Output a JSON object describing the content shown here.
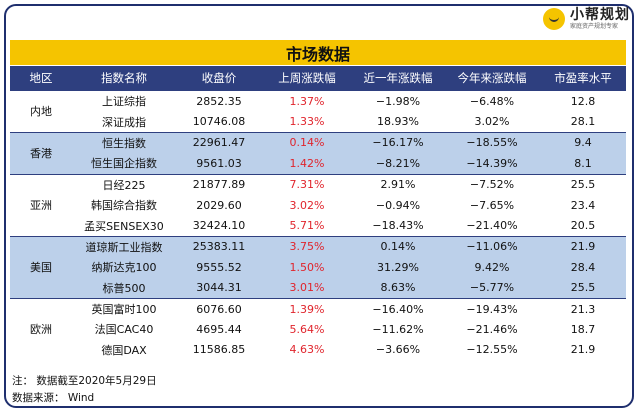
{
  "brand": {
    "name": "小帮规划",
    "slogan": "家庭资产规划专家"
  },
  "title": "市场数据",
  "headers": [
    "地区",
    "指数名称",
    "收盘价",
    "上周涨跌幅",
    "近一年涨跌幅",
    "今年来涨跌幅",
    "市盈率水平"
  ],
  "groups": [
    {
      "region": "内地",
      "rows": [
        {
          "name": "上证综指",
          "close": "2852.35",
          "week": "1.37%",
          "year": "−1.98%",
          "ytd": "−6.48%",
          "pe": "12.8"
        },
        {
          "name": "深证成指",
          "close": "10746.08",
          "week": "1.33%",
          "year": "18.93%",
          "ytd": "3.02%",
          "pe": "28.1"
        }
      ]
    },
    {
      "region": "香港",
      "rows": [
        {
          "name": "恒生指数",
          "close": "22961.47",
          "week": "0.14%",
          "year": "−16.17%",
          "ytd": "−18.55%",
          "pe": "9.4"
        },
        {
          "name": "恒生国企指数",
          "close": "9561.03",
          "week": "1.42%",
          "year": "−8.21%",
          "ytd": "−14.39%",
          "pe": "8.1"
        }
      ]
    },
    {
      "region": "亚洲",
      "rows": [
        {
          "name": "日经225",
          "close": "21877.89",
          "week": "7.31%",
          "year": "2.91%",
          "ytd": "−7.52%",
          "pe": "25.5"
        },
        {
          "name": "韩国综合指数",
          "close": "2029.60",
          "week": "3.02%",
          "year": "−0.94%",
          "ytd": "−7.65%",
          "pe": "23.4"
        },
        {
          "name": "孟买SENSEX30",
          "close": "32424.10",
          "week": "5.71%",
          "year": "−18.43%",
          "ytd": "−21.40%",
          "pe": "20.5"
        }
      ]
    },
    {
      "region": "美国",
      "rows": [
        {
          "name": "道琼斯工业指数",
          "close": "25383.11",
          "week": "3.75%",
          "year": "0.14%",
          "ytd": "−11.06%",
          "pe": "21.9"
        },
        {
          "name": "纳斯达克100",
          "close": "9555.52",
          "week": "1.50%",
          "year": "31.29%",
          "ytd": "9.42%",
          "pe": "28.4"
        },
        {
          "name": "标普500",
          "close": "3044.31",
          "week": "3.01%",
          "year": "8.63%",
          "ytd": "−5.77%",
          "pe": "25.5"
        }
      ]
    },
    {
      "region": "欧洲",
      "rows": [
        {
          "name": "英国富时100",
          "close": "6076.60",
          "week": "1.39%",
          "year": "−16.40%",
          "ytd": "−19.43%",
          "pe": "21.3"
        },
        {
          "name": "法国CAC40",
          "close": "4695.44",
          "week": "5.64%",
          "year": "−11.62%",
          "ytd": "−21.46%",
          "pe": "18.7"
        },
        {
          "name": "德国DAX",
          "close": "11586.85",
          "week": "4.63%",
          "year": "−3.66%",
          "ytd": "−12.55%",
          "pe": "21.9"
        }
      ]
    }
  ],
  "footnotes": [
    "注：  数据截至2020年5月29日",
    "数据来源：  Wind"
  ],
  "colors": {
    "header_bg": "#2e3f7f",
    "title_bg": "#f5c400",
    "band_blue": "#bcd0ea",
    "positive": "#e0242c"
  }
}
